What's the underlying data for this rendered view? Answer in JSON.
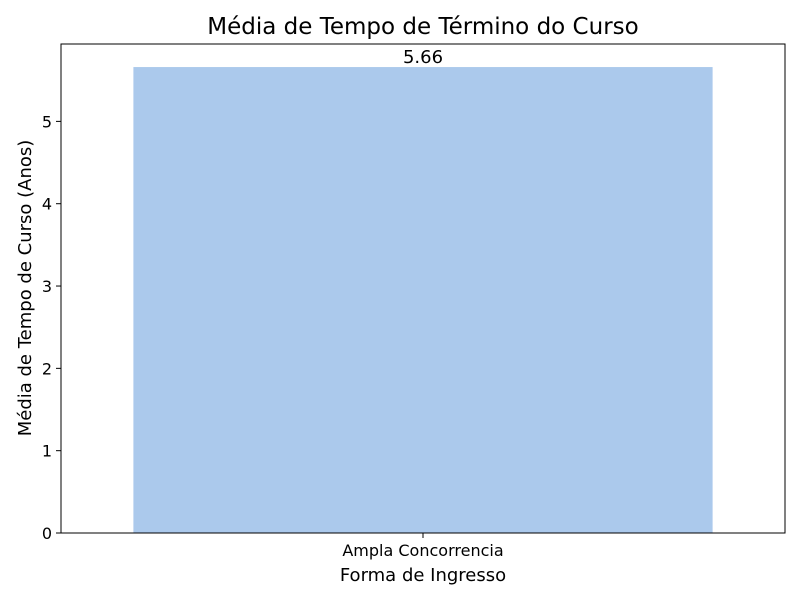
{
  "chart_data": {
    "type": "bar",
    "title": "Média de Tempo de Término do Curso",
    "xlabel": "Forma de Ingresso",
    "ylabel": "Média de Tempo de Curso (Anos)",
    "categories": [
      "Ampla Concorrencia"
    ],
    "values": [
      5.66
    ],
    "data_labels": [
      "5.66"
    ],
    "ylim": [
      0,
      5.94
    ],
    "yticks": [
      0,
      1,
      2,
      3,
      4,
      5
    ],
    "grid": false,
    "legend": "none",
    "colors": {
      "bar": "#abc9ec",
      "axis": "#000000",
      "background": "#ffffff"
    }
  }
}
